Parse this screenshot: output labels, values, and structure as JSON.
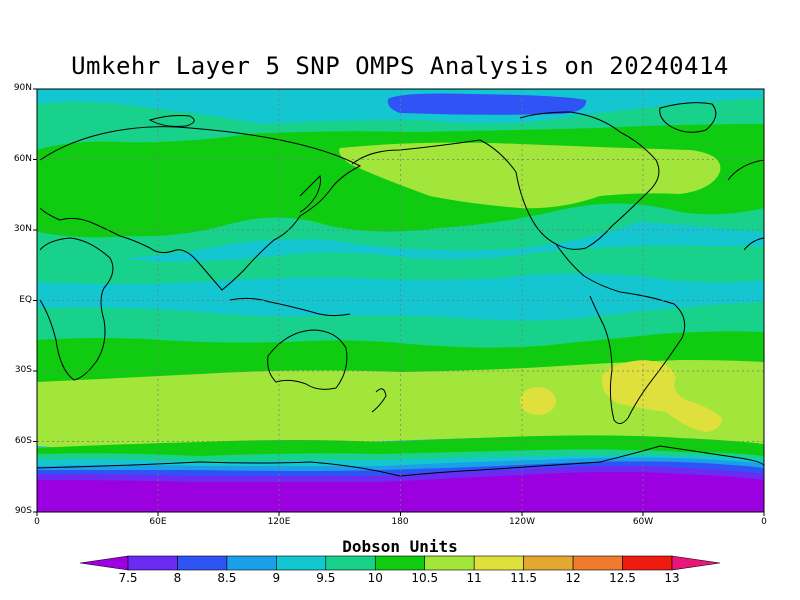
{
  "title": "Umkehr Layer 5 SNP OMPS Analysis on 20240414",
  "map": {
    "projection": "cylindrical equidistant",
    "lon_range": [
      0,
      360
    ],
    "lat_range": [
      -90,
      90
    ],
    "y_axis_labels": [
      "90N",
      "60N",
      "30N",
      "EQ",
      "30S",
      "60S",
      "90S"
    ],
    "y_axis_values": [
      90,
      60,
      30,
      0,
      -30,
      -60,
      -90
    ],
    "x_axis_labels": [
      "0",
      "60E",
      "120E",
      "180",
      "120W",
      "60W",
      "0"
    ],
    "x_axis_values": [
      0,
      60,
      120,
      180,
      240,
      300,
      360
    ],
    "gridlines": "dotted"
  },
  "colorbar": {
    "title": "Dobson Units",
    "labels": [
      "7.5",
      "8",
      "8.5",
      "9",
      "9.5",
      "10",
      "10.5",
      "11",
      "11.5",
      "12",
      "12.5",
      "13"
    ],
    "colors": [
      "#9b00e0",
      "#6a2cf2",
      "#2f53f4",
      "#1aa0e8",
      "#14c6d0",
      "#18d18a",
      "#10cc10",
      "#a2e63c",
      "#e0e03c",
      "#e2a832",
      "#ef7b2e",
      "#ee1c10",
      "#e8157a"
    ],
    "extend": "both"
  }
}
